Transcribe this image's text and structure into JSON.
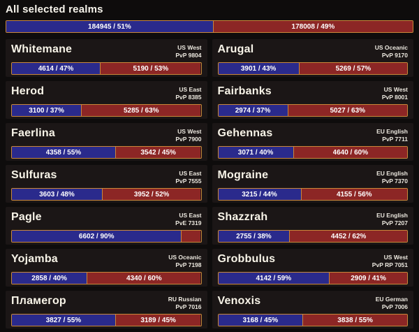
{
  "header": {
    "title": "All selected realms"
  },
  "colors": {
    "alliance_blue": "#2a2a8c",
    "horde_red": "#8c2625",
    "bar_border_gold": "#c9883a",
    "card_background": "#1b1616",
    "page_background": "#0e0c0c"
  },
  "totals": {
    "alliance_label": "184945 / 51%",
    "horde_label": "178008 / 49%",
    "alliance_pct": 51,
    "horde_pct": 49
  },
  "realms": [
    {
      "name": "Whitemane",
      "region": "US West",
      "type": "PvP 9804",
      "alliance_label": "4614 / 47%",
      "horde_label": "5190 / 53%",
      "alliance_pct": 47,
      "horde_pct": 53
    },
    {
      "name": "Arugal",
      "region": "US Oceanic",
      "type": "PvP 9170",
      "alliance_label": "3901 / 43%",
      "horde_label": "5269 / 57%",
      "alliance_pct": 43,
      "horde_pct": 57
    },
    {
      "name": "Herod",
      "region": "US East",
      "type": "PvP 8385",
      "alliance_label": "3100 / 37%",
      "horde_label": "5285 / 63%",
      "alliance_pct": 37,
      "horde_pct": 63
    },
    {
      "name": "Fairbanks",
      "region": "US West",
      "type": "PvP 8001",
      "alliance_label": "2974 / 37%",
      "horde_label": "5027 / 63%",
      "alliance_pct": 37,
      "horde_pct": 63
    },
    {
      "name": "Faerlina",
      "region": "US West",
      "type": "PvP 7900",
      "alliance_label": "4358 / 55%",
      "horde_label": "3542 / 45%",
      "alliance_pct": 55,
      "horde_pct": 45
    },
    {
      "name": "Gehennas",
      "region": "EU English",
      "type": "PvP 7711",
      "alliance_label": "3071 / 40%",
      "horde_label": "4640 / 60%",
      "alliance_pct": 40,
      "horde_pct": 60
    },
    {
      "name": "Sulfuras",
      "region": "US East",
      "type": "PvP 7555",
      "alliance_label": "3603 / 48%",
      "horde_label": "3952 / 52%",
      "alliance_pct": 48,
      "horde_pct": 52
    },
    {
      "name": "Mograine",
      "region": "EU English",
      "type": "PvP 7370",
      "alliance_label": "3215 / 44%",
      "horde_label": "4155 / 56%",
      "alliance_pct": 44,
      "horde_pct": 56
    },
    {
      "name": "Pagle",
      "region": "US East",
      "type": "PvE 7319",
      "alliance_label": "6602 / 90%",
      "horde_label": "",
      "alliance_pct": 90,
      "horde_pct": 10
    },
    {
      "name": "Shazzrah",
      "region": "EU English",
      "type": "PvP 7207",
      "alliance_label": "2755 / 38%",
      "horde_label": "4452 / 62%",
      "alliance_pct": 38,
      "horde_pct": 62
    },
    {
      "name": "Yojamba",
      "region": "US Oceanic",
      "type": "PvP 7198",
      "alliance_label": "2858 / 40%",
      "horde_label": "4340 / 60%",
      "alliance_pct": 40,
      "horde_pct": 60
    },
    {
      "name": "Grobbulus",
      "region": "US West",
      "type": "PvP RP 7051",
      "alliance_label": "4142 / 59%",
      "horde_label": "2909 / 41%",
      "alliance_pct": 59,
      "horde_pct": 41
    },
    {
      "name": "Пламегор",
      "region": "RU Russian",
      "type": "PvP 7016",
      "alliance_label": "3827 / 55%",
      "horde_label": "3189 / 45%",
      "alliance_pct": 55,
      "horde_pct": 45
    },
    {
      "name": "Venoxis",
      "region": "EU German",
      "type": "PvP 7006",
      "alliance_label": "3168 / 45%",
      "horde_label": "3838 / 55%",
      "alliance_pct": 45,
      "horde_pct": 55
    }
  ]
}
